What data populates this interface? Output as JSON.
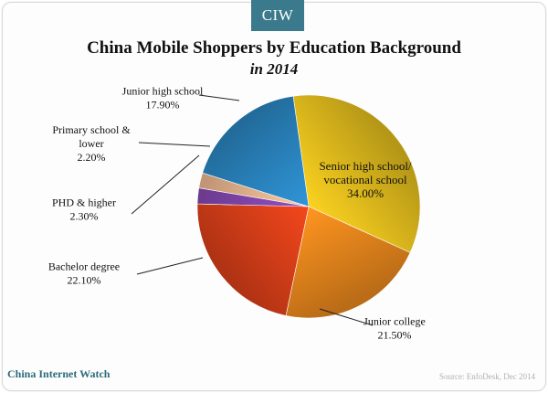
{
  "header": {
    "badge": "CIW",
    "title": "China Mobile Shoppers by Education Background",
    "subtitle": "in 2014"
  },
  "footer": {
    "brand": "China Internet Watch",
    "source": "Source: EnfoDesk, Dec 2014"
  },
  "chart_data": {
    "type": "pie",
    "title": "China Mobile Shoppers by Education Background",
    "subtitle": "in 2014",
    "slices": [
      {
        "label": "Senior high school/ vocational school",
        "label_lines": [
          "Senior high school/",
          "vocational school"
        ],
        "value_text": "34.00%",
        "value": 34.0,
        "color": "#e8c21e"
      },
      {
        "label": "Junior college",
        "label_lines": [
          "Junior college"
        ],
        "value_text": "21.50%",
        "value": 21.5,
        "color": "#ee8a1e"
      },
      {
        "label": "Bachelor degree",
        "label_lines": [
          "Bachelor degree"
        ],
        "value_text": "22.10%",
        "value": 22.1,
        "color": "#e2421a"
      },
      {
        "label": "PHD & higher",
        "label_lines": [
          "PHD & higher"
        ],
        "value_text": "2.30%",
        "value": 2.3,
        "color": "#8a4bb8"
      },
      {
        "label": "Primary school & lower",
        "label_lines": [
          "Primary school &",
          "lower"
        ],
        "value_text": "2.20%",
        "value": 2.2,
        "color": "#f7bf96"
      },
      {
        "label": "Junior high school",
        "label_lines": [
          "Junior high school"
        ],
        "value_text": "17.90%",
        "value": 17.9,
        "color": "#2c8ac8"
      }
    ]
  }
}
